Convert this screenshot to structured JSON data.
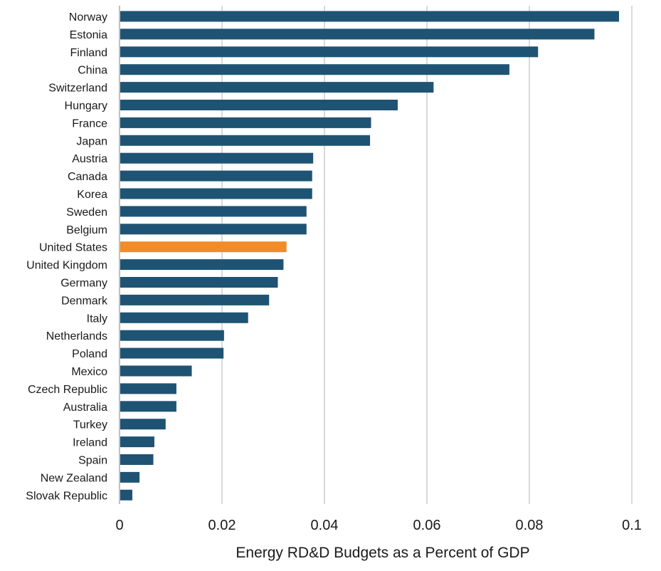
{
  "chart_data": {
    "type": "bar",
    "orientation": "horizontal",
    "xlabel": "Energy RD&D Budgets as a Percent of GDP",
    "ylabel": "",
    "xlim": [
      0,
      0.1
    ],
    "xticks": [
      "0",
      "0.02",
      "0.04",
      "0.06",
      "0.08",
      "0.1"
    ],
    "xtick_values": [
      0,
      0.02,
      0.04,
      0.06,
      0.08,
      0.1
    ],
    "grid": "vertical",
    "colors": {
      "default": "#1f5373",
      "highlight": "#f28c28",
      "grid": "#d9d9d9",
      "axis": "#bfbfbf"
    },
    "highlight_category": "United States",
    "categories": [
      "Norway",
      "Estonia",
      "Finland",
      "China",
      "Switzerland",
      "Hungary",
      "France",
      "Japan",
      "Austria",
      "Canada",
      "Korea",
      "Sweden",
      "Belgium",
      "United States",
      "United Kingdom",
      "Germany",
      "Denmark",
      "Italy",
      "Netherlands",
      "Poland",
      "Mexico",
      "Czech Republic",
      "Australia",
      "Turkey",
      "Ireland",
      "Spain",
      "New Zealand",
      "Slovak Republic"
    ],
    "values": [
      0.0975,
      0.0927,
      0.0817,
      0.0761,
      0.0613,
      0.0543,
      0.0491,
      0.0489,
      0.0378,
      0.0376,
      0.0376,
      0.0365,
      0.0365,
      0.0326,
      0.032,
      0.0309,
      0.0292,
      0.0251,
      0.0204,
      0.0203,
      0.0141,
      0.0111,
      0.0111,
      0.009,
      0.0068,
      0.0066,
      0.0039,
      0.0025
    ]
  }
}
